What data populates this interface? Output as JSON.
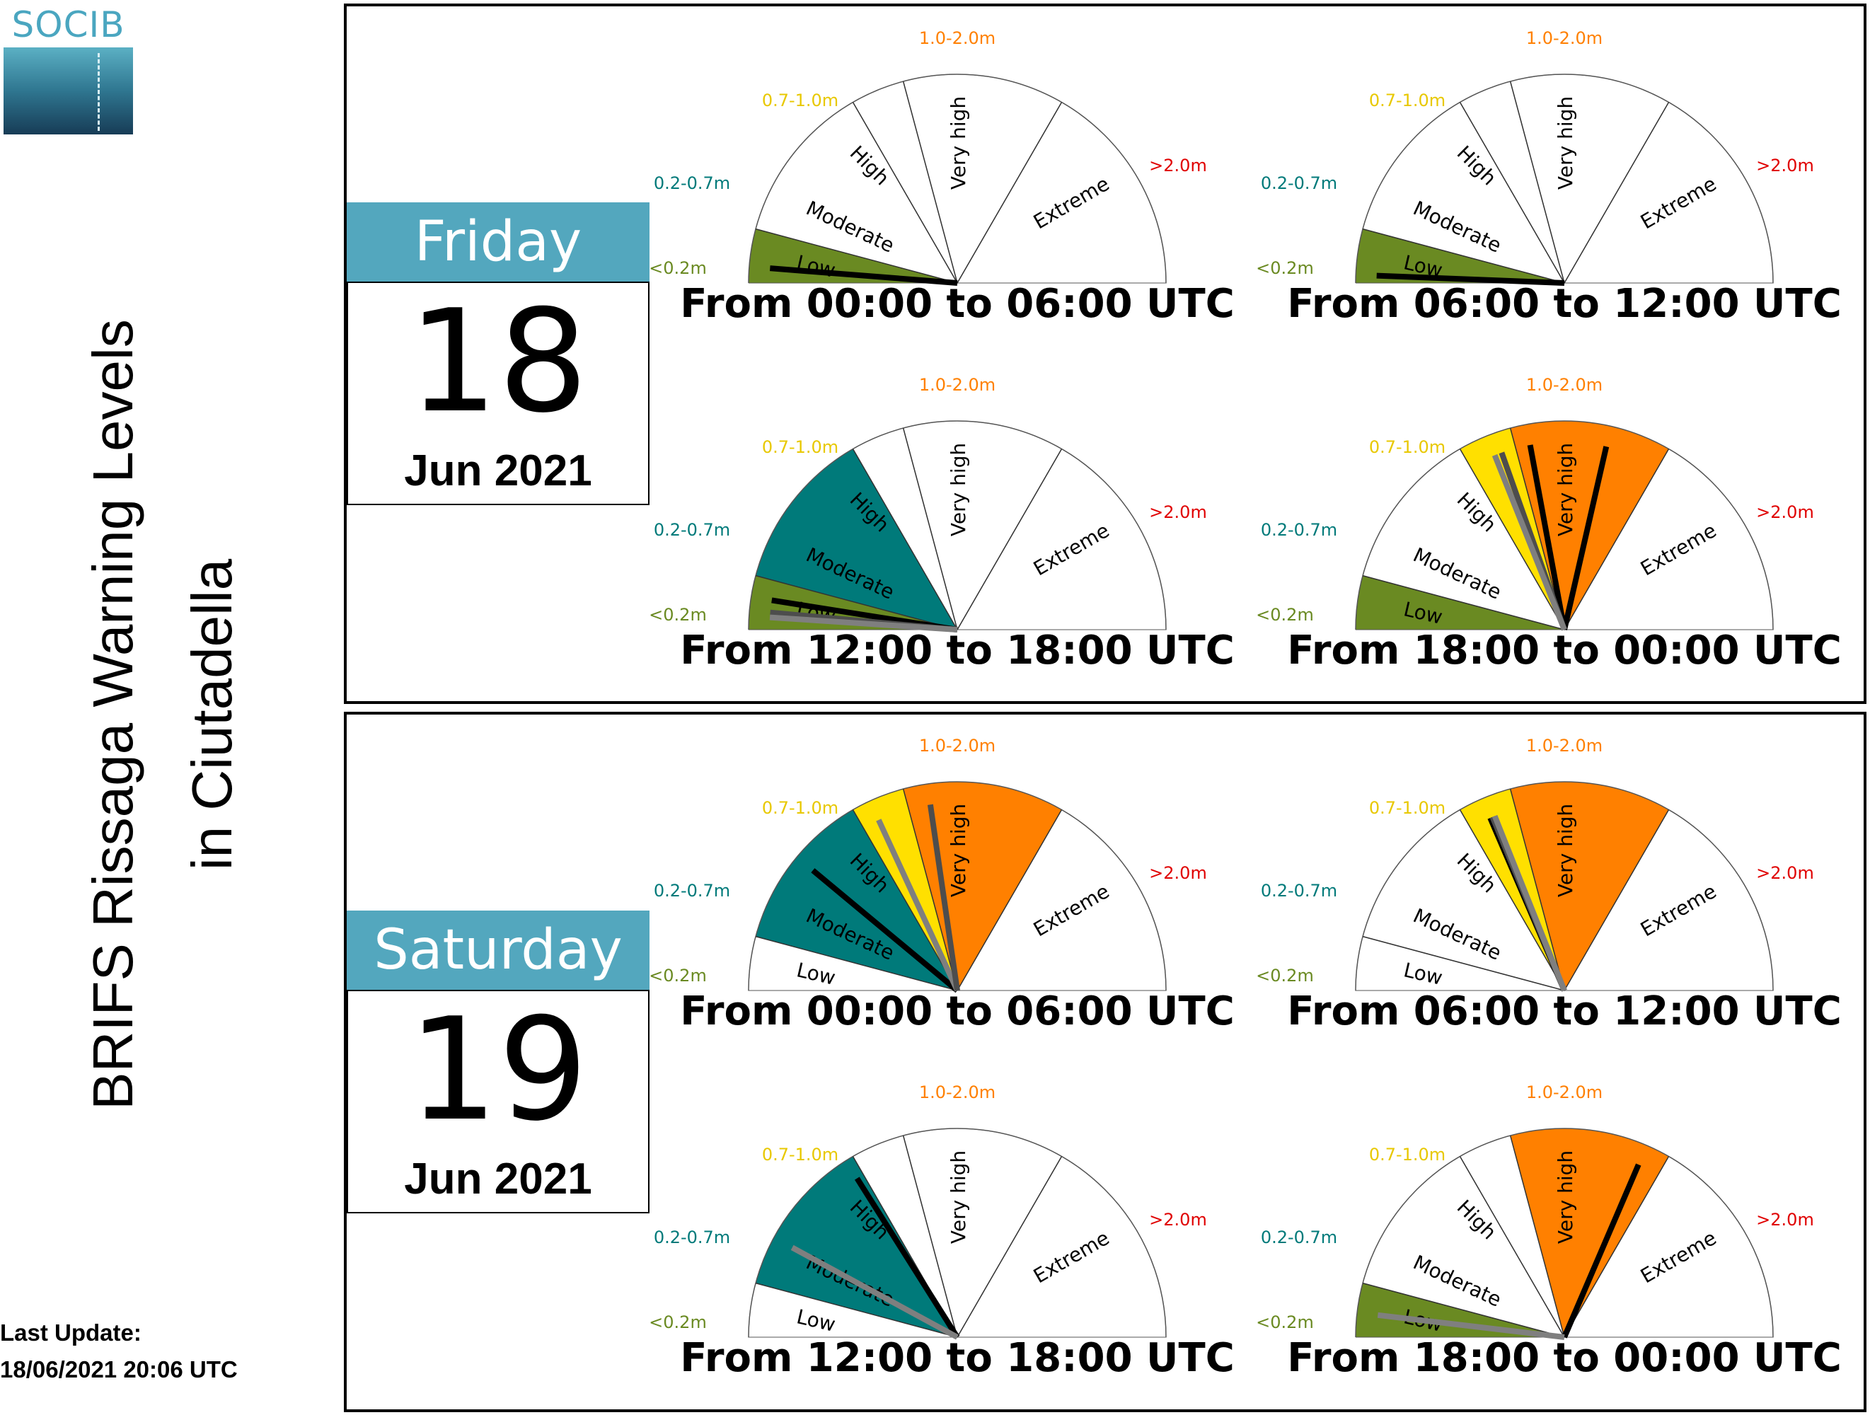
{
  "logo": {
    "text": "SOCIB"
  },
  "title": {
    "line1": "BRIFS Rissaga Warning Levels",
    "line2": "in Ciutadella"
  },
  "update": {
    "label": "Last Update:",
    "value": "18/06/2021 20:06 UTC"
  },
  "colors": {
    "low": "#6a8a22",
    "moderate": "#007a7a",
    "high": "#ffe000",
    "very_high": "#ff8000",
    "extreme": "#e00000",
    "card_header": "#53a7be"
  },
  "legend": {
    "sectors": [
      "Low",
      "Moderate",
      "High",
      "Very high",
      "Extreme"
    ],
    "ranges": [
      "<0.2m",
      "0.2-0.7m",
      "0.7-1.0m",
      "1.0-2.0m",
      ">2.0m"
    ]
  },
  "days": [
    {
      "day": "Friday",
      "date": "18",
      "month": "Jun 2021",
      "gauges": [
        {
          "label": "From 00:00 to 06:00 UTC",
          "filled": [
            0
          ],
          "needles": [
            {
              "level": 0.3,
              "color": "black"
            }
          ]
        },
        {
          "label": "From 06:00 to 12:00 UTC",
          "filled": [
            0
          ],
          "needles": [
            {
              "level": 0.15,
              "color": "black"
            }
          ]
        },
        {
          "label": "From 12:00 to 18:00 UTC",
          "filled": [
            0,
            1
          ],
          "needles": [
            {
              "level": 0.6,
              "color": "black"
            },
            {
              "level": 0.35,
              "color": "dimgray"
            },
            {
              "level": 0.25,
              "color": "gray"
            }
          ]
        },
        {
          "label": "From 18:00 to 00:00 UTC",
          "filled": [
            0,
            2,
            3
          ],
          "needles": [
            {
              "level": 3.62,
              "color": "black"
            },
            {
              "level": 3.1,
              "color": "black"
            },
            {
              "level": 2.7,
              "color": "dimgray"
            },
            {
              "level": 2.55,
              "color": "gray"
            }
          ]
        }
      ]
    },
    {
      "day": "Saturday",
      "date": "19",
      "month": "Jun 2021",
      "gauges": [
        {
          "label": "From 00:00 to 06:00 UTC",
          "filled": [
            1,
            2,
            3
          ],
          "needles": [
            {
              "level": 1.55,
              "color": "black"
            },
            {
              "level": 2.35,
              "color": "gray"
            },
            {
              "level": 3.15,
              "color": "dimgray"
            }
          ]
        },
        {
          "label": "From 06:00 to 12:00 UTC",
          "filled": [
            2,
            3
          ],
          "needles": [
            {
              "level": 2.45,
              "color": "black"
            },
            {
              "level": 2.5,
              "color": "dimgray"
            },
            {
              "level": 2.55,
              "color": "gray"
            }
          ]
        },
        {
          "label": "From 12:00 to 18:00 UTC",
          "filled": [
            1
          ],
          "needles": [
            {
              "level": 1.95,
              "color": "black"
            },
            {
              "level": 1.3,
              "color": "gray"
            }
          ]
        },
        {
          "label": "From 18:00 to 00:00 UTC",
          "filled": [
            0,
            3
          ],
          "needles": [
            {
              "level": 3.85,
              "color": "black"
            },
            {
              "level": 0.45,
              "color": "gray"
            }
          ]
        }
      ]
    }
  ]
}
